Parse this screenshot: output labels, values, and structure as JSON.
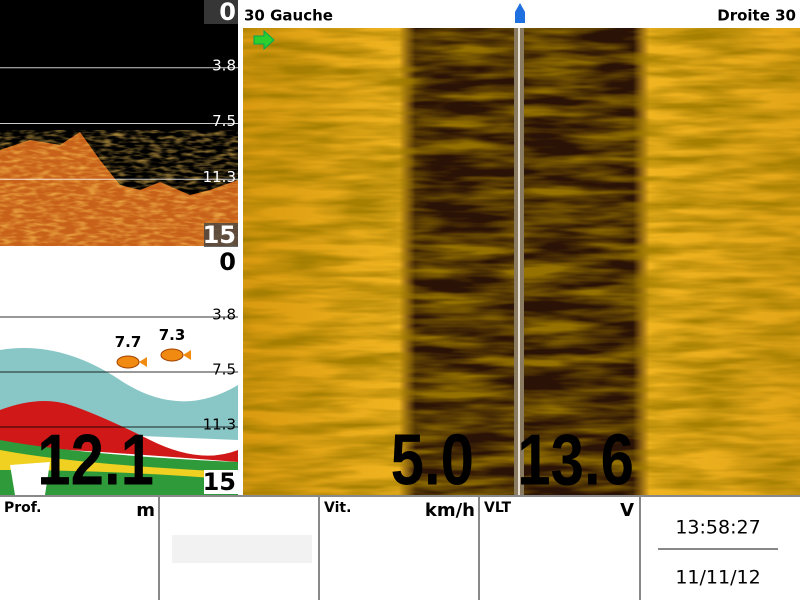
{
  "down_view": {
    "scale": [
      "0",
      "3.8",
      "7.5",
      "11.3",
      "15"
    ]
  },
  "sonar_2d": {
    "scale": [
      "0",
      "3.8",
      "7.5",
      "11.3",
      "15"
    ],
    "fish": [
      "7.7",
      "7.3"
    ]
  },
  "side_view": {
    "left_label": "30 Gauche",
    "right_label": "Droite 30"
  },
  "status_bar": {
    "depth": {
      "label": "Prof.",
      "unit": "m",
      "value": "12.1"
    },
    "speed": {
      "label": "Vit.",
      "unit": "km/h",
      "value": "5.0"
    },
    "voltage": {
      "label": "VLT",
      "unit": "V",
      "value": "13.6"
    },
    "time": "13:58:27",
    "date": "11/11/12"
  }
}
